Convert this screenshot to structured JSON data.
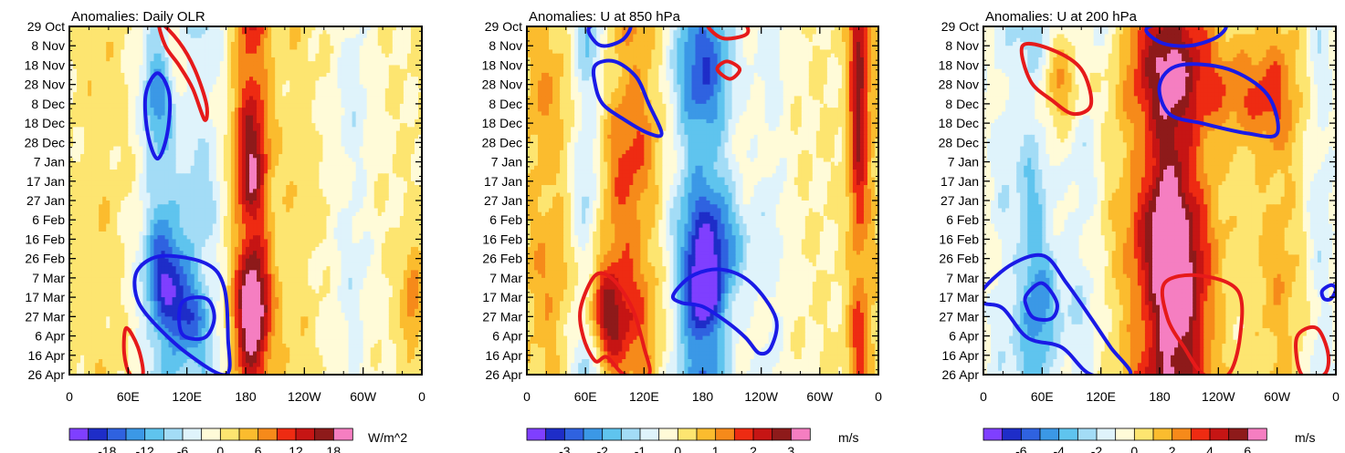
{
  "chart_data": [
    {
      "type": "heatmap",
      "title": "Anomalies: Daily OLR",
      "units": "W/m^2",
      "x_tick_labels": [
        "0",
        "60E",
        "120E",
        "180",
        "120W",
        "60W",
        "0"
      ],
      "y_tick_labels": [
        "29 Oct",
        "8 Nov",
        "18 Nov",
        "28 Nov",
        "8 Dec",
        "18 Dec",
        "28 Dec",
        "7 Jan",
        "17 Jan",
        "27 Jan",
        "6 Feb",
        "16 Feb",
        "26 Feb",
        "7 Mar",
        "17 Mar",
        "27 Mar",
        "6 Apr",
        "16 Apr",
        "26 Apr"
      ],
      "colorbar_labels": [
        "-18",
        "-12",
        "-6",
        "0",
        "6",
        "12",
        "18"
      ],
      "colorbar_levels": [
        -21,
        -18,
        -15,
        -12,
        -9,
        -6,
        -3,
        0,
        3,
        6,
        9,
        12,
        15,
        18,
        21
      ],
      "xlim": [
        0,
        360
      ],
      "ylim_days": [
        0,
        179
      ],
      "bands": [
        {
          "lon": 95,
          "amp": -8,
          "width": 14
        },
        {
          "lon": 135,
          "amp": -6,
          "width": 16
        },
        {
          "lon": 186,
          "amp": 13,
          "width": 13
        },
        {
          "lon": 290,
          "amp": -4,
          "width": 14
        },
        {
          "lon": 30,
          "amp": 2,
          "width": 16
        },
        {
          "lon": 232,
          "amp": 2,
          "width": 12
        }
      ],
      "blobs": [
        {
          "lon": 100,
          "day": 132,
          "amp": -12,
          "rl": 18,
          "rd": 18
        },
        {
          "lon": 120,
          "day": 150,
          "amp": -10,
          "rl": 14,
          "rd": 14
        },
        {
          "lon": 88,
          "day": 40,
          "amp": -7,
          "rl": 10,
          "rd": 20
        },
        {
          "lon": 190,
          "day": 140,
          "amp": 8,
          "rl": 14,
          "rd": 22
        },
        {
          "lon": 185,
          "day": 80,
          "amp": 4,
          "rl": 10,
          "rd": 12
        },
        {
          "lon": 105,
          "day": 15,
          "amp": 7,
          "rl": 12,
          "rd": 15
        },
        {
          "lon": 350,
          "day": 140,
          "amp": 8,
          "rl": 8,
          "rd": 20
        }
      ],
      "blue_contours": [
        [
          [
            90,
            24
          ],
          [
            102,
            35
          ],
          [
            100,
            55
          ],
          [
            90,
            68
          ],
          [
            80,
            55
          ],
          [
            78,
            35
          ]
        ],
        [
          [
            70,
            125
          ],
          [
            95,
            118
          ],
          [
            140,
            122
          ],
          [
            158,
            134
          ],
          [
            162,
            160
          ],
          [
            160,
            179
          ],
          [
            120,
            168
          ],
          [
            82,
            150
          ],
          [
            68,
            138
          ]
        ],
        [
          [
            115,
            142
          ],
          [
            140,
            140
          ],
          [
            148,
            150
          ],
          [
            138,
            160
          ],
          [
            115,
            158
          ]
        ]
      ],
      "red_contours": [
        [
          [
            92,
            -2
          ],
          [
            112,
            8
          ],
          [
            128,
            22
          ],
          [
            140,
            40
          ],
          [
            138,
            48
          ],
          [
            126,
            32
          ],
          [
            112,
            20
          ],
          [
            98,
            10
          ]
        ],
        [
          [
            58,
            155
          ],
          [
            70,
            165
          ],
          [
            75,
            179
          ],
          [
            62,
            179
          ],
          [
            56,
            168
          ]
        ]
      ]
    },
    {
      "type": "heatmap",
      "title": "Anomalies: U at 850 hPa",
      "units": "m/s",
      "x_tick_labels": [
        "0",
        "60E",
        "120E",
        "180",
        "120W",
        "60W",
        "0"
      ],
      "y_tick_labels": [
        "29 Oct",
        "8 Nov",
        "18 Nov",
        "28 Nov",
        "8 Dec",
        "18 Dec",
        "28 Dec",
        "7 Jan",
        "17 Jan",
        "27 Jan",
        "6 Feb",
        "16 Feb",
        "26 Feb",
        "7 Mar",
        "17 Mar",
        "27 Mar",
        "6 Apr",
        "16 Apr",
        "26 Apr"
      ],
      "colorbar_labels": [
        "-3",
        "-2",
        "-1",
        "0",
        "1",
        "2",
        "3"
      ],
      "colorbar_levels": [
        -3.5,
        -3,
        -2.5,
        -2,
        -1.5,
        -1,
        -0.5,
        0,
        0.5,
        1,
        1.5,
        2,
        2.5,
        3,
        3.5
      ],
      "xlim": [
        0,
        360
      ],
      "ylim_days": [
        0,
        179
      ],
      "bands": [
        {
          "lon": 180,
          "amp": -2.4,
          "width": 22
        },
        {
          "lon": 62,
          "amp": -1.3,
          "width": 12
        },
        {
          "lon": 110,
          "amp": 1.2,
          "width": 20
        },
        {
          "lon": 20,
          "amp": 0.8,
          "width": 18
        },
        {
          "lon": 250,
          "amp": -0.6,
          "width": 14
        },
        {
          "lon": 340,
          "amp": 1.4,
          "width": 8
        }
      ],
      "blobs": [
        {
          "lon": 180,
          "day": 140,
          "amp": -2.2,
          "rl": 14,
          "rd": 14
        },
        {
          "lon": 80,
          "day": 150,
          "amp": 2.4,
          "rl": 14,
          "rd": 18
        },
        {
          "lon": 340,
          "day": 30,
          "amp": 1.6,
          "rl": 7,
          "rd": 28
        },
        {
          "lon": 205,
          "day": 115,
          "amp": -1,
          "rl": 20,
          "rd": 18
        },
        {
          "lon": 80,
          "day": 95,
          "amp": 0.8,
          "rl": 20,
          "rd": 30
        }
      ],
      "blue_contours": [
        [
          [
            65,
            0
          ],
          [
            70,
            8
          ],
          [
            82,
            10
          ],
          [
            100,
            6
          ],
          [
            104,
            -2
          ]
        ],
        [
          [
            70,
            20
          ],
          [
            90,
            18
          ],
          [
            112,
            26
          ],
          [
            125,
            40
          ],
          [
            138,
            55
          ],
          [
            125,
            55
          ],
          [
            100,
            48
          ],
          [
            78,
            40
          ],
          [
            70,
            30
          ]
        ],
        [
          [
            150,
            138
          ],
          [
            170,
            128
          ],
          [
            200,
            125
          ],
          [
            230,
            132
          ],
          [
            255,
            150
          ],
          [
            250,
            165
          ],
          [
            238,
            168
          ],
          [
            224,
            160
          ],
          [
            205,
            152
          ],
          [
            180,
            144
          ],
          [
            158,
            142
          ]
        ]
      ],
      "red_contours": [
        [
          [
            185,
            -2
          ],
          [
            200,
            6
          ],
          [
            225,
            4
          ],
          [
            220,
            -2
          ]
        ],
        [
          [
            195,
            22
          ],
          [
            205,
            18
          ],
          [
            218,
            22
          ],
          [
            208,
            27
          ]
        ],
        [
          [
            55,
            145
          ],
          [
            70,
            128
          ],
          [
            88,
            130
          ],
          [
            108,
            145
          ],
          [
            120,
            165
          ],
          [
            125,
            179
          ],
          [
            100,
            179
          ],
          [
            82,
            170
          ],
          [
            70,
            172
          ],
          [
            58,
            160
          ]
        ]
      ]
    },
    {
      "type": "heatmap",
      "title": "Anomalies: U at 200 hPa",
      "units": "m/s",
      "x_tick_labels": [
        "0",
        "60E",
        "120E",
        "180",
        "120W",
        "60W",
        "0"
      ],
      "y_tick_labels": [
        "29 Oct",
        "8 Nov",
        "18 Nov",
        "28 Nov",
        "8 Dec",
        "18 Dec",
        "28 Dec",
        "7 Jan",
        "17 Jan",
        "27 Jan",
        "6 Feb",
        "16 Feb",
        "26 Feb",
        "7 Mar",
        "17 Mar",
        "27 Mar",
        "6 Apr",
        "16 Apr",
        "26 Apr"
      ],
      "colorbar_labels": [
        "-6",
        "-4",
        "-2",
        "0",
        "2",
        "4",
        "6"
      ],
      "colorbar_levels": [
        -7,
        -6,
        -5,
        -4,
        -3,
        -2,
        -1,
        0,
        1,
        2,
        3,
        4,
        5,
        6,
        7
      ],
      "xlim": [
        0,
        360
      ],
      "ylim_days": [
        0,
        179
      ],
      "bands": [
        {
          "lon": 190,
          "amp": 5,
          "width": 30
        },
        {
          "lon": 50,
          "amp": -2.5,
          "width": 14
        },
        {
          "lon": 100,
          "amp": -1.5,
          "width": 14
        },
        {
          "lon": 300,
          "amp": 1.5,
          "width": 16
        },
        {
          "lon": 345,
          "amp": -1.5,
          "width": 10
        },
        {
          "lon": 18,
          "amp": -1.2,
          "width": 10
        }
      ],
      "blobs": [
        {
          "lon": 200,
          "day": 145,
          "amp": 3.5,
          "rl": 20,
          "rd": 22
        },
        {
          "lon": 190,
          "day": 80,
          "amp": 2,
          "rl": 14,
          "rd": 30
        },
        {
          "lon": 60,
          "day": 140,
          "amp": -3,
          "rl": 16,
          "rd": 20
        },
        {
          "lon": 270,
          "day": 35,
          "amp": 2.5,
          "rl": 30,
          "rd": 18
        },
        {
          "lon": 80,
          "day": 30,
          "amp": 2.5,
          "rl": 16,
          "rd": 18
        },
        {
          "lon": 130,
          "day": 5,
          "amp": -1.2,
          "rl": 10,
          "rd": 12
        }
      ],
      "blue_contours": [
        [
          [
            170,
            0
          ],
          [
            180,
            8
          ],
          [
            210,
            10
          ],
          [
            240,
            5
          ],
          [
            242,
            -2
          ]
        ],
        [
          [
            180,
            30
          ],
          [
            200,
            20
          ],
          [
            250,
            22
          ],
          [
            290,
            35
          ],
          [
            300,
            55
          ],
          [
            270,
            55
          ],
          [
            225,
            50
          ],
          [
            190,
            45
          ]
        ],
        [
          [
            0,
            135
          ],
          [
            30,
            122
          ],
          [
            62,
            118
          ],
          [
            85,
            132
          ],
          [
            110,
            150
          ],
          [
            130,
            165
          ],
          [
            150,
            179
          ],
          [
            110,
            179
          ],
          [
            80,
            165
          ],
          [
            45,
            160
          ],
          [
            20,
            145
          ],
          [
            0,
            142
          ]
        ],
        [
          [
            44,
            138
          ],
          [
            60,
            132
          ],
          [
            75,
            142
          ],
          [
            70,
            150
          ],
          [
            52,
            150
          ],
          [
            44,
            144
          ]
        ],
        [
          [
            346,
            136
          ],
          [
            355,
            133
          ],
          [
            360,
            135
          ],
          [
            355,
            140
          ],
          [
            348,
            140
          ]
        ]
      ],
      "red_contours": [
        [
          [
            40,
            10
          ],
          [
            70,
            12
          ],
          [
            100,
            22
          ],
          [
            110,
            40
          ],
          [
            92,
            45
          ],
          [
            70,
            38
          ],
          [
            48,
            28
          ]
        ],
        [
          [
            185,
            132
          ],
          [
            220,
            128
          ],
          [
            260,
            136
          ],
          [
            262,
            160
          ],
          [
            250,
            179
          ],
          [
            225,
            179
          ],
          [
            205,
            165
          ],
          [
            188,
            150
          ]
        ],
        [
          [
            320,
            160
          ],
          [
            340,
            155
          ],
          [
            352,
            168
          ],
          [
            348,
            179
          ],
          [
            325,
            179
          ]
        ]
      ]
    }
  ]
}
